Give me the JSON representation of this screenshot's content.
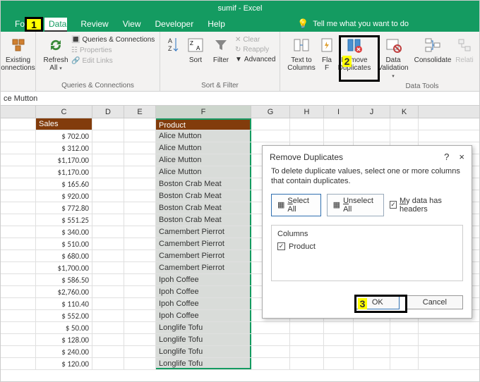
{
  "window": {
    "title": "sumif - Excel"
  },
  "tabs": [
    "Form",
    "Data",
    "Review",
    "View",
    "Developer",
    "Help"
  ],
  "tell_me": "Tell me what you want to do",
  "ribbon": {
    "existing": "Existing\nonnections",
    "refresh": "Refresh\nAll",
    "queries": "Queries & Connections",
    "properties": "Properties",
    "editlinks": "Edit Links",
    "group_qc": "Queries & Connections",
    "sort": "Sort",
    "filter": "Filter",
    "clear": "Clear",
    "reapply": "Reapply",
    "advanced": "Advanced",
    "group_sf": "Sort & Filter",
    "text_to_columns": "Text to\nColumns",
    "flash_fill": "Fla\nF",
    "remove_dup": "Remove\nDuplicates",
    "data_val": "Data\nValidation",
    "consolidate": "Consolidate",
    "relationships": "Relati",
    "group_dt": "Data Tools"
  },
  "formula_bar": "ce Mutton",
  "columns": [
    "C",
    "D",
    "E",
    "F",
    "G",
    "H",
    "I",
    "J",
    "K"
  ],
  "header_sales": "Sales",
  "header_product": "Product",
  "rows": [
    {
      "sales": "$   702.00",
      "product": "Alice Mutton"
    },
    {
      "sales": "$   312.00",
      "product": "Alice Mutton"
    },
    {
      "sales": "$1,170.00",
      "product": "Alice Mutton"
    },
    {
      "sales": "$1,170.00",
      "product": "Alice Mutton"
    },
    {
      "sales": "$   165.60",
      "product": "Boston Crab Meat"
    },
    {
      "sales": "$   920.00",
      "product": "Boston Crab Meat"
    },
    {
      "sales": "$   772.80",
      "product": "Boston Crab Meat"
    },
    {
      "sales": "$   551.25",
      "product": "Boston Crab Meat"
    },
    {
      "sales": "$   340.00",
      "product": "Camembert Pierrot"
    },
    {
      "sales": "$   510.00",
      "product": "Camembert Pierrot"
    },
    {
      "sales": "$   680.00",
      "product": "Camembert Pierrot"
    },
    {
      "sales": "$1,700.00",
      "product": "Camembert Pierrot"
    },
    {
      "sales": "$   586.50",
      "product": "Ipoh Coffee"
    },
    {
      "sales": "$2,760.00",
      "product": "Ipoh Coffee"
    },
    {
      "sales": "$   110.40",
      "product": "Ipoh Coffee"
    },
    {
      "sales": "$   552.00",
      "product": "Ipoh Coffee"
    },
    {
      "sales": "$     50.00",
      "product": "Longlife Tofu"
    },
    {
      "sales": "$   128.00",
      "product": "Longlife Tofu"
    },
    {
      "sales": "$   240.00",
      "product": "Longlife Tofu"
    },
    {
      "sales": "$   120.00",
      "product": "Longlife Tofu"
    }
  ],
  "dialog": {
    "title": "Remove Duplicates",
    "text": "To delete duplicate values, select one or more columns that contain duplicates.",
    "select_all": "Select All",
    "unselect_all": "Unselect All",
    "my_data_headers": "My data has headers",
    "columns_label": "Columns",
    "col_item": "Product",
    "ok": "OK",
    "cancel": "Cancel"
  },
  "callouts": {
    "c1": "1",
    "c2": "2",
    "c3": "3"
  },
  "colors": {
    "accent": "#149b61",
    "header_row": "#823c0c",
    "highlight": "#ffff00",
    "selection_fill": "#d9dcd9"
  }
}
